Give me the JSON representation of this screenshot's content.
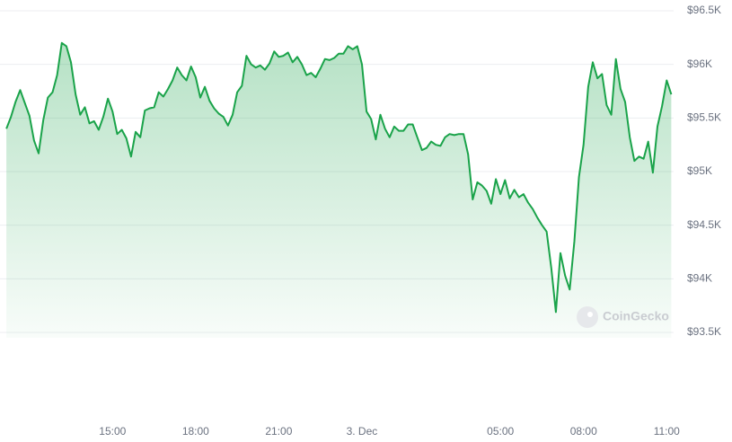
{
  "chart_data": {
    "type": "line",
    "watermark": "CoinGecko",
    "color": "#1aa34a",
    "area": true,
    "grid": true,
    "xlim": [
      666,
      2115
    ],
    "xticks": [
      {
        "value": 900,
        "label": "15:00"
      },
      {
        "value": 1080,
        "label": "18:00"
      },
      {
        "value": 1260,
        "label": "21:00"
      },
      {
        "value": 1440,
        "label": "3. Dec"
      },
      {
        "value": 1740,
        "label": "05:00"
      },
      {
        "value": 1920,
        "label": "08:00"
      },
      {
        "value": 2100,
        "label": "11:00"
      }
    ],
    "ylim": [
      93450,
      96550
    ],
    "yticks": [
      {
        "value": 93500,
        "label": "$93.5K"
      },
      {
        "value": 94000,
        "label": "$94K"
      },
      {
        "value": 94500,
        "label": "$94.5K"
      },
      {
        "value": 95000,
        "label": "$95K"
      },
      {
        "value": 95500,
        "label": "$95.5K"
      },
      {
        "value": 96000,
        "label": "$96K"
      },
      {
        "value": 96500,
        "label": "$96.5K"
      }
    ],
    "x": [
      670,
      680,
      690,
      700,
      710,
      720,
      730,
      740,
      750,
      760,
      770,
      780,
      790,
      800,
      810,
      820,
      830,
      840,
      850,
      860,
      870,
      880,
      890,
      900,
      910,
      920,
      930,
      940,
      950,
      960,
      970,
      980,
      990,
      1000,
      1010,
      1020,
      1030,
      1040,
      1050,
      1060,
      1070,
      1080,
      1090,
      1100,
      1110,
      1120,
      1130,
      1140,
      1150,
      1160,
      1170,
      1180,
      1190,
      1200,
      1210,
      1220,
      1230,
      1240,
      1250,
      1260,
      1270,
      1280,
      1290,
      1300,
      1310,
      1320,
      1330,
      1340,
      1350,
      1360,
      1370,
      1380,
      1390,
      1400,
      1410,
      1420,
      1430,
      1440,
      1450,
      1460,
      1470,
      1480,
      1490,
      1500,
      1510,
      1520,
      1530,
      1540,
      1550,
      1560,
      1570,
      1580,
      1590,
      1600,
      1610,
      1620,
      1630,
      1640,
      1650,
      1660,
      1670,
      1680,
      1690,
      1700,
      1710,
      1720,
      1730,
      1740,
      1750,
      1760,
      1770,
      1780,
      1790,
      1800,
      1810,
      1820,
      1830,
      1840,
      1850,
      1860,
      1870,
      1880,
      1890,
      1900,
      1910,
      1920,
      1930,
      1940,
      1950,
      1960,
      1970,
      1980,
      1990,
      2000,
      2010,
      2020,
      2030,
      2040,
      2050,
      2060,
      2070,
      2080,
      2090,
      2100,
      2110
    ],
    "values": [
      95400,
      95510,
      95650,
      95760,
      95640,
      95520,
      95290,
      95170,
      95480,
      95690,
      95740,
      95900,
      96200,
      96170,
      96020,
      95720,
      95530,
      95600,
      95450,
      95470,
      95390,
      95510,
      95680,
      95560,
      95350,
      95390,
      95310,
      95140,
      95370,
      95320,
      95570,
      95590,
      95600,
      95740,
      95700,
      95770,
      95850,
      95970,
      95900,
      95850,
      95980,
      95880,
      95690,
      95790,
      95660,
      95590,
      95540,
      95510,
      95430,
      95530,
      95740,
      95800,
      96080,
      96000,
      95970,
      95990,
      95950,
      96010,
      96120,
      96070,
      96080,
      96110,
      96020,
      96070,
      96000,
      95900,
      95920,
      95880,
      95960,
      96050,
      96040,
      96060,
      96100,
      96100,
      96170,
      96140,
      96170,
      96000,
      95560,
      95490,
      95300,
      95530,
      95400,
      95320,
      95420,
      95380,
      95380,
      95440,
      95440,
      95320,
      95200,
      95220,
      95280,
      95250,
      95240,
      95320,
      95350,
      95340,
      95350,
      95350,
      95160,
      94740,
      94900,
      94870,
      94820,
      94700,
      94930,
      94790,
      94920,
      94750,
      94830,
      94760,
      94790,
      94710,
      94650,
      94570,
      94500,
      94440,
      94100,
      93690,
      94240,
      94030,
      93900,
      94350,
      94950,
      95250,
      95790,
      96020,
      95870,
      95910,
      95620,
      95530,
      96050,
      95770,
      95650,
      95320,
      95100,
      95140,
      95120,
      95280,
      94990,
      95420,
      95610,
      95850,
      95720
    ]
  }
}
